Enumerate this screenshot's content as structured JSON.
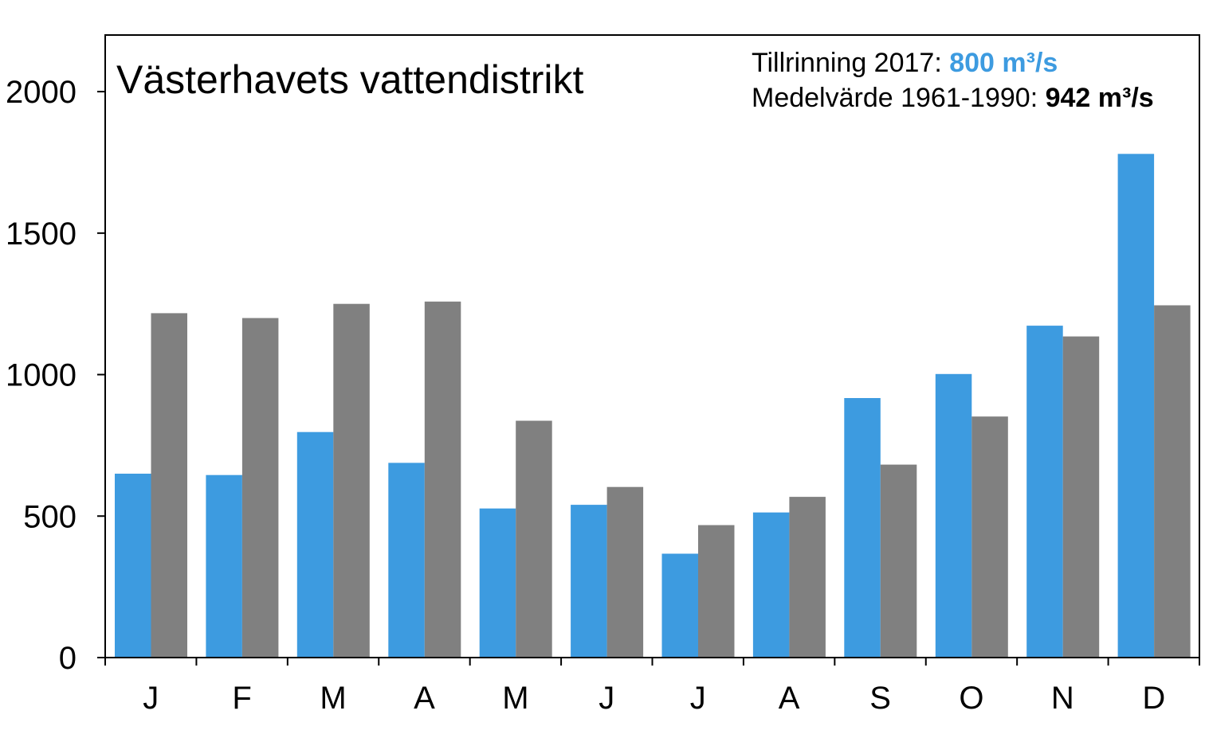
{
  "chart_data": {
    "type": "bar",
    "title": "Västerhavets vattendistrikt",
    "categories": [
      "J",
      "F",
      "M",
      "A",
      "M",
      "J",
      "J",
      "A",
      "S",
      "O",
      "N",
      "D"
    ],
    "series": [
      {
        "values": [
          650,
          645,
          797,
          688,
          527,
          540,
          367,
          513,
          917,
          1002,
          1173,
          1780
        ],
        "color": "#3d9be0"
      },
      {
        "values": [
          1217,
          1200,
          1250,
          1258,
          837,
          603,
          468,
          568,
          682,
          852,
          1135,
          1245
        ],
        "color": "#808080"
      }
    ],
    "ylim": [
      0,
      2200
    ],
    "yticks": [
      "0",
      "500",
      "1000",
      "1500",
      "2000"
    ],
    "ytick_values": [
      0,
      500,
      1000,
      1500,
      2000
    ],
    "grid": false,
    "annotations": {
      "line1_prefix": "Tillrinning 2017: ",
      "line1_value": "800 m³/s",
      "line1_value_color": "#3d9be0",
      "line2_prefix": "Medelvärde 1961-1990: ",
      "line2_value": "942 m³/s"
    }
  }
}
